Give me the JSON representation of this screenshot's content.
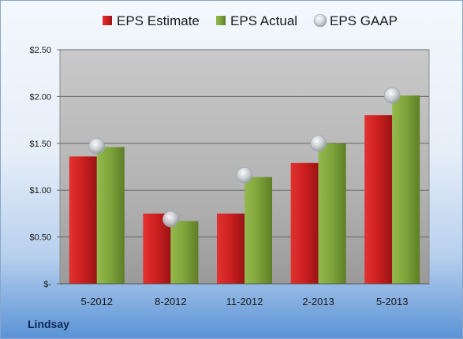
{
  "company": "Lindsay",
  "colors": {
    "estimate": "#cc1f1f",
    "actual": "#7ea33a",
    "gaap": "#b8bec6"
  },
  "chart_data": {
    "type": "bar",
    "categories": [
      "5-2012",
      "8-2012",
      "11-2012",
      "2-2013",
      "5-2013"
    ],
    "series": [
      {
        "name": "EPS Estimate",
        "type": "bar",
        "values": [
          1.36,
          0.75,
          0.75,
          1.29,
          1.8
        ]
      },
      {
        "name": "EPS Actual",
        "type": "bar",
        "values": [
          1.46,
          0.67,
          1.14,
          1.5,
          2.01
        ]
      },
      {
        "name": "EPS GAAP",
        "type": "scatter",
        "values": [
          1.47,
          0.69,
          1.16,
          1.5,
          2.01
        ]
      }
    ],
    "ylim": [
      0,
      2.5
    ],
    "yticks": [
      0,
      0.5,
      1.0,
      1.5,
      2.0,
      2.5
    ],
    "ytick_labels": [
      "$-",
      "$0.50",
      "$1.00",
      "$1.50",
      "$2.00",
      "$2.50"
    ],
    "grid": true,
    "legend_position": "top"
  }
}
